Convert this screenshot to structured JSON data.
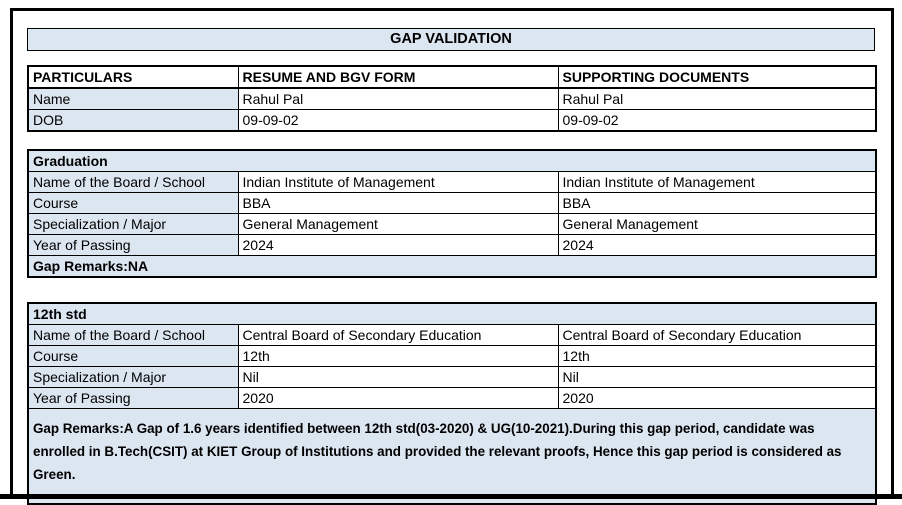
{
  "page": {
    "title": "GAP VALIDATION"
  },
  "colors": {
    "accent_bg": "#dce6f1",
    "border": "#000000",
    "text": "#000000"
  },
  "personal_table": {
    "headers": [
      "PARTICULARS",
      "RESUME AND BGV FORM",
      "SUPPORTING DOCUMENTS"
    ],
    "rows": [
      {
        "label": "Name",
        "resume": "Rahul Pal",
        "supporting": "Rahul Pal"
      },
      {
        "label": "DOB",
        "resume": "09-09-02",
        "supporting": "09-09-02"
      }
    ]
  },
  "sections": [
    {
      "title": "Graduation",
      "rows": [
        {
          "label": "Name of the Board / School",
          "resume": "Indian Institute of Management",
          "supporting": "Indian Institute of Management"
        },
        {
          "label": "Course",
          "resume": "BBA",
          "supporting": "BBA"
        },
        {
          "label": "Specialization / Major",
          "resume": "General Management",
          "supporting": "General Management"
        },
        {
          "label": "Year of Passing",
          "resume": "2024",
          "supporting": "2024"
        }
      ],
      "gap_remarks": "Gap Remarks:NA"
    },
    {
      "title": "12th std",
      "rows": [
        {
          "label": "Name of the Board / School",
          "resume": "Central Board of Secondary Education",
          "supporting": "Central Board of Secondary Education"
        },
        {
          "label": "Course",
          "resume": "12th",
          "supporting": "12th"
        },
        {
          "label": "Specialization / Major",
          "resume": "Nil",
          "supporting": "Nil"
        },
        {
          "label": "Year of Passing",
          "resume": "2020",
          "supporting": "2020"
        }
      ],
      "gap_remarks": "Gap Remarks:A Gap of 1.6 years identified between 12th std(03-2020) & UG(10-2021).During this gap period, candidate was enrolled in B.Tech(CSIT) at KIET Group of Institutions and provided the relevant proofs, Hence this gap period is considered as Green."
    }
  ]
}
